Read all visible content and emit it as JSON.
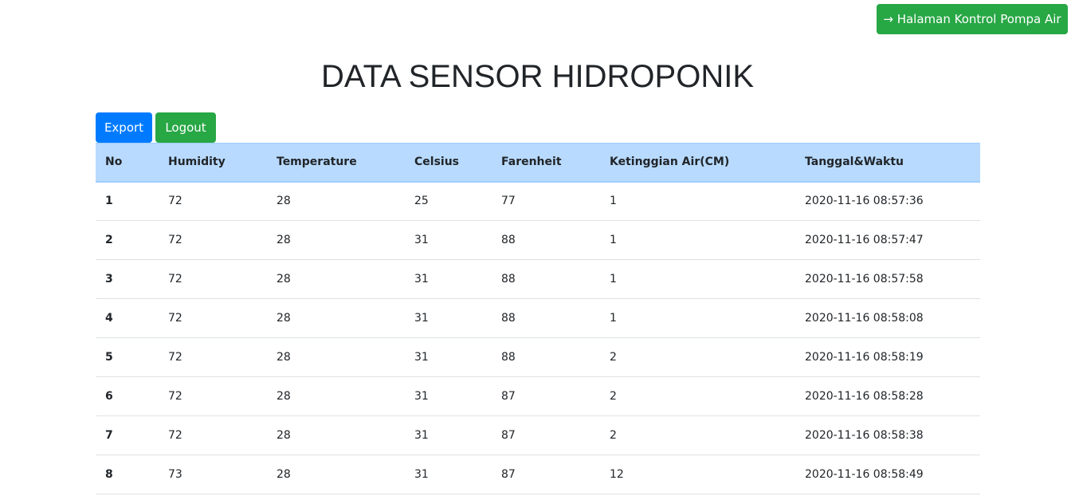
{
  "header": {
    "nav_button_label": "→ Halaman Kontrol Pompa Air",
    "title": "DATA SENSOR HIDROPONIK"
  },
  "actions": {
    "export_label": "Export",
    "logout_label": "Logout"
  },
  "table": {
    "columns": [
      "No",
      "Humidity",
      "Temperature",
      "Celsius",
      "Farenheit",
      "Ketinggian Air(CM)",
      "Tanggal&Waktu"
    ],
    "rows": [
      [
        "1",
        "72",
        "28",
        "25",
        "77",
        "1",
        "2020-11-16 08:57:36"
      ],
      [
        "2",
        "72",
        "28",
        "31",
        "88",
        "1",
        "2020-11-16 08:57:47"
      ],
      [
        "3",
        "72",
        "28",
        "31",
        "88",
        "1",
        "2020-11-16 08:57:58"
      ],
      [
        "4",
        "72",
        "28",
        "31",
        "88",
        "1",
        "2020-11-16 08:58:08"
      ],
      [
        "5",
        "72",
        "28",
        "31",
        "88",
        "2",
        "2020-11-16 08:58:19"
      ],
      [
        "6",
        "72",
        "28",
        "31",
        "87",
        "2",
        "2020-11-16 08:58:28"
      ],
      [
        "7",
        "72",
        "28",
        "31",
        "87",
        "2",
        "2020-11-16 08:58:38"
      ],
      [
        "8",
        "73",
        "28",
        "31",
        "87",
        "12",
        "2020-11-16 08:58:49"
      ]
    ]
  },
  "colors": {
    "primary": "#007bff",
    "success": "#28a745",
    "table_header": "#b8daff",
    "text": "#212529"
  }
}
